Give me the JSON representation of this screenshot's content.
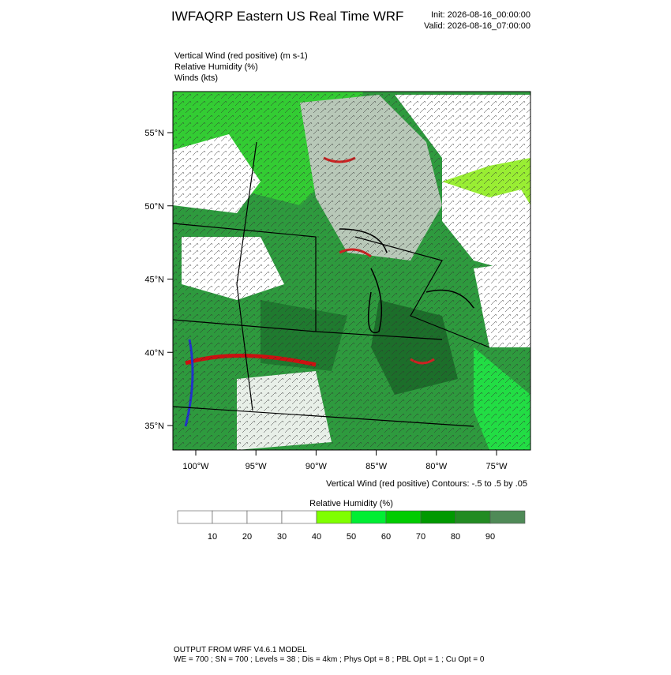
{
  "header": {
    "title": "IWFAQRP Eastern US Real Time WRF",
    "init": "Init: 2026-08-16_00:00:00",
    "valid": "Valid: 2026-08-16_07:00:00"
  },
  "fields": [
    "Vertical Wind (red positive)   (m s-1)",
    "Relative Humidity   (%)",
    "Winds   (kts)"
  ],
  "map": {
    "lat_ticks": [
      {
        "value": 55,
        "label": "55°N"
      },
      {
        "value": 50,
        "label": "50°N"
      },
      {
        "value": 45,
        "label": "45°N"
      },
      {
        "value": 40,
        "label": "40°N"
      },
      {
        "value": 35,
        "label": "35°N"
      }
    ],
    "lon_ticks": [
      {
        "value": -100,
        "label": "100°W"
      },
      {
        "value": -95,
        "label": "95°W"
      },
      {
        "value": -90,
        "label": "90°W"
      },
      {
        "value": -85,
        "label": "85°W"
      },
      {
        "value": -80,
        "label": "80°W"
      },
      {
        "value": -75,
        "label": "75°W"
      }
    ],
    "contour_note": "Vertical Wind (red positive) Contours: -.5 to .5 by .05"
  },
  "colorbar": {
    "title": "Relative Humidity  (%)",
    "ticks": [
      10,
      20,
      30,
      40,
      50,
      60,
      70,
      80,
      90
    ],
    "colors": [
      "#ffffff",
      "#ffffff",
      "#ffffff",
      "#ffffff",
      "#7fff00",
      "#00ee33",
      "#00cc00",
      "#009900",
      "#228b22",
      "#4f8a57"
    ]
  },
  "footer": {
    "line1": "OUTPUT FROM WRF V4.6.1 MODEL",
    "line2": "WE = 700 ; SN = 700 ; Levels = 38 ; Dis = 4km ; Phys Opt = 8 ; PBL Opt = 1 ; Cu Opt = 0"
  }
}
